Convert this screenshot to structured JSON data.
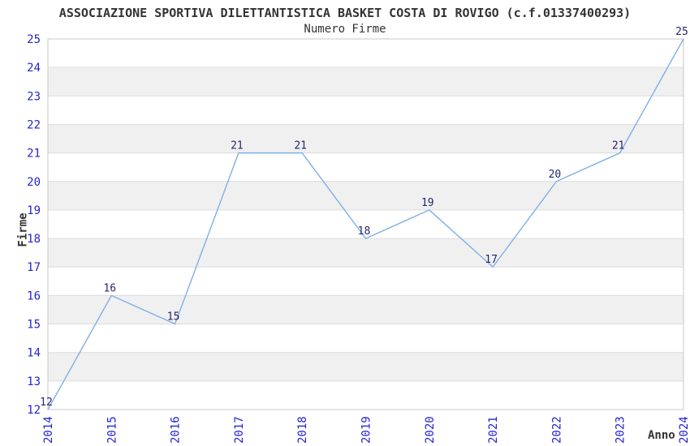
{
  "chart_data": {
    "type": "line",
    "title": "ASSOCIAZIONE SPORTIVA DILETTANTISTICA BASKET COSTA DI ROVIGO (c.f.01337400293)",
    "subtitle": "Numero Firme",
    "xlabel": "Anno",
    "ylabel": "Firme",
    "x": [
      "2014",
      "2015",
      "2016",
      "2017",
      "2018",
      "2019",
      "2020",
      "2021",
      "2022",
      "2023",
      "2024"
    ],
    "series": [
      {
        "name": "Firme",
        "values": [
          12,
          16,
          15,
          21,
          21,
          18,
          19,
          17,
          20,
          21,
          25
        ]
      }
    ],
    "ylim": [
      12,
      25
    ],
    "ytick_step": 1,
    "point_labels": true,
    "grid": "horizontal",
    "band_fill": "alternating",
    "legend": "none",
    "colors": {
      "line": "#7fb0e6",
      "tick_label": "#2424cc",
      "point_label": "#26266e",
      "band": "#f0f0f0",
      "gridline": "#dcdcdc",
      "border": "#c8c8c8",
      "text": "#333333",
      "background": "#ffffff"
    }
  }
}
